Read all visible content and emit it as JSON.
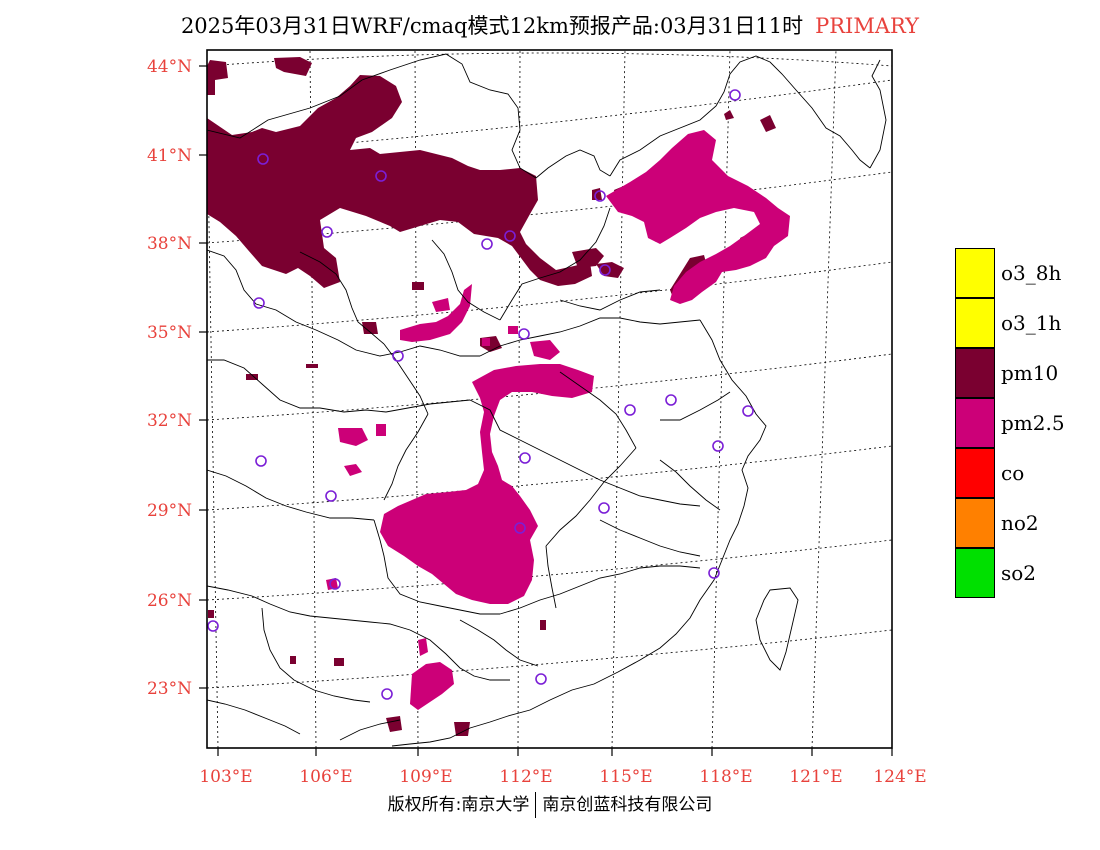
{
  "title": {
    "text": "2025年03月31日WRF/cmaq模式12km预报产品:03月31日11时",
    "tag": "PRIMARY"
  },
  "axes": {
    "lat_labels": [
      "44°N",
      "41°N",
      "38°N",
      "35°N",
      "32°N",
      "29°N",
      "26°N",
      "23°N"
    ],
    "lon_labels": [
      "103°E",
      "106°E",
      "109°E",
      "112°E",
      "115°E",
      "118°E",
      "121°E",
      "124°E"
    ]
  },
  "legend": [
    {
      "label": "o3_8h",
      "color": "#ffff00"
    },
    {
      "label": "o3_1h",
      "color": "#ffff00"
    },
    {
      "label": "pm10",
      "color": "#7a0030"
    },
    {
      "label": "pm2.5",
      "color": "#cc0078"
    },
    {
      "label": "co",
      "color": "#ff0000"
    },
    {
      "label": "no2",
      "color": "#ff8000"
    },
    {
      "label": "so2",
      "color": "#00e000"
    }
  ],
  "colors": {
    "pm10": "#7a0030",
    "pm25": "#cc0078",
    "station": "#7b1fd6",
    "axis_label": "#e8423c"
  },
  "footer": {
    "left": "版权所有:南京大学",
    "right": "南京创蓝科技有限公司"
  }
}
